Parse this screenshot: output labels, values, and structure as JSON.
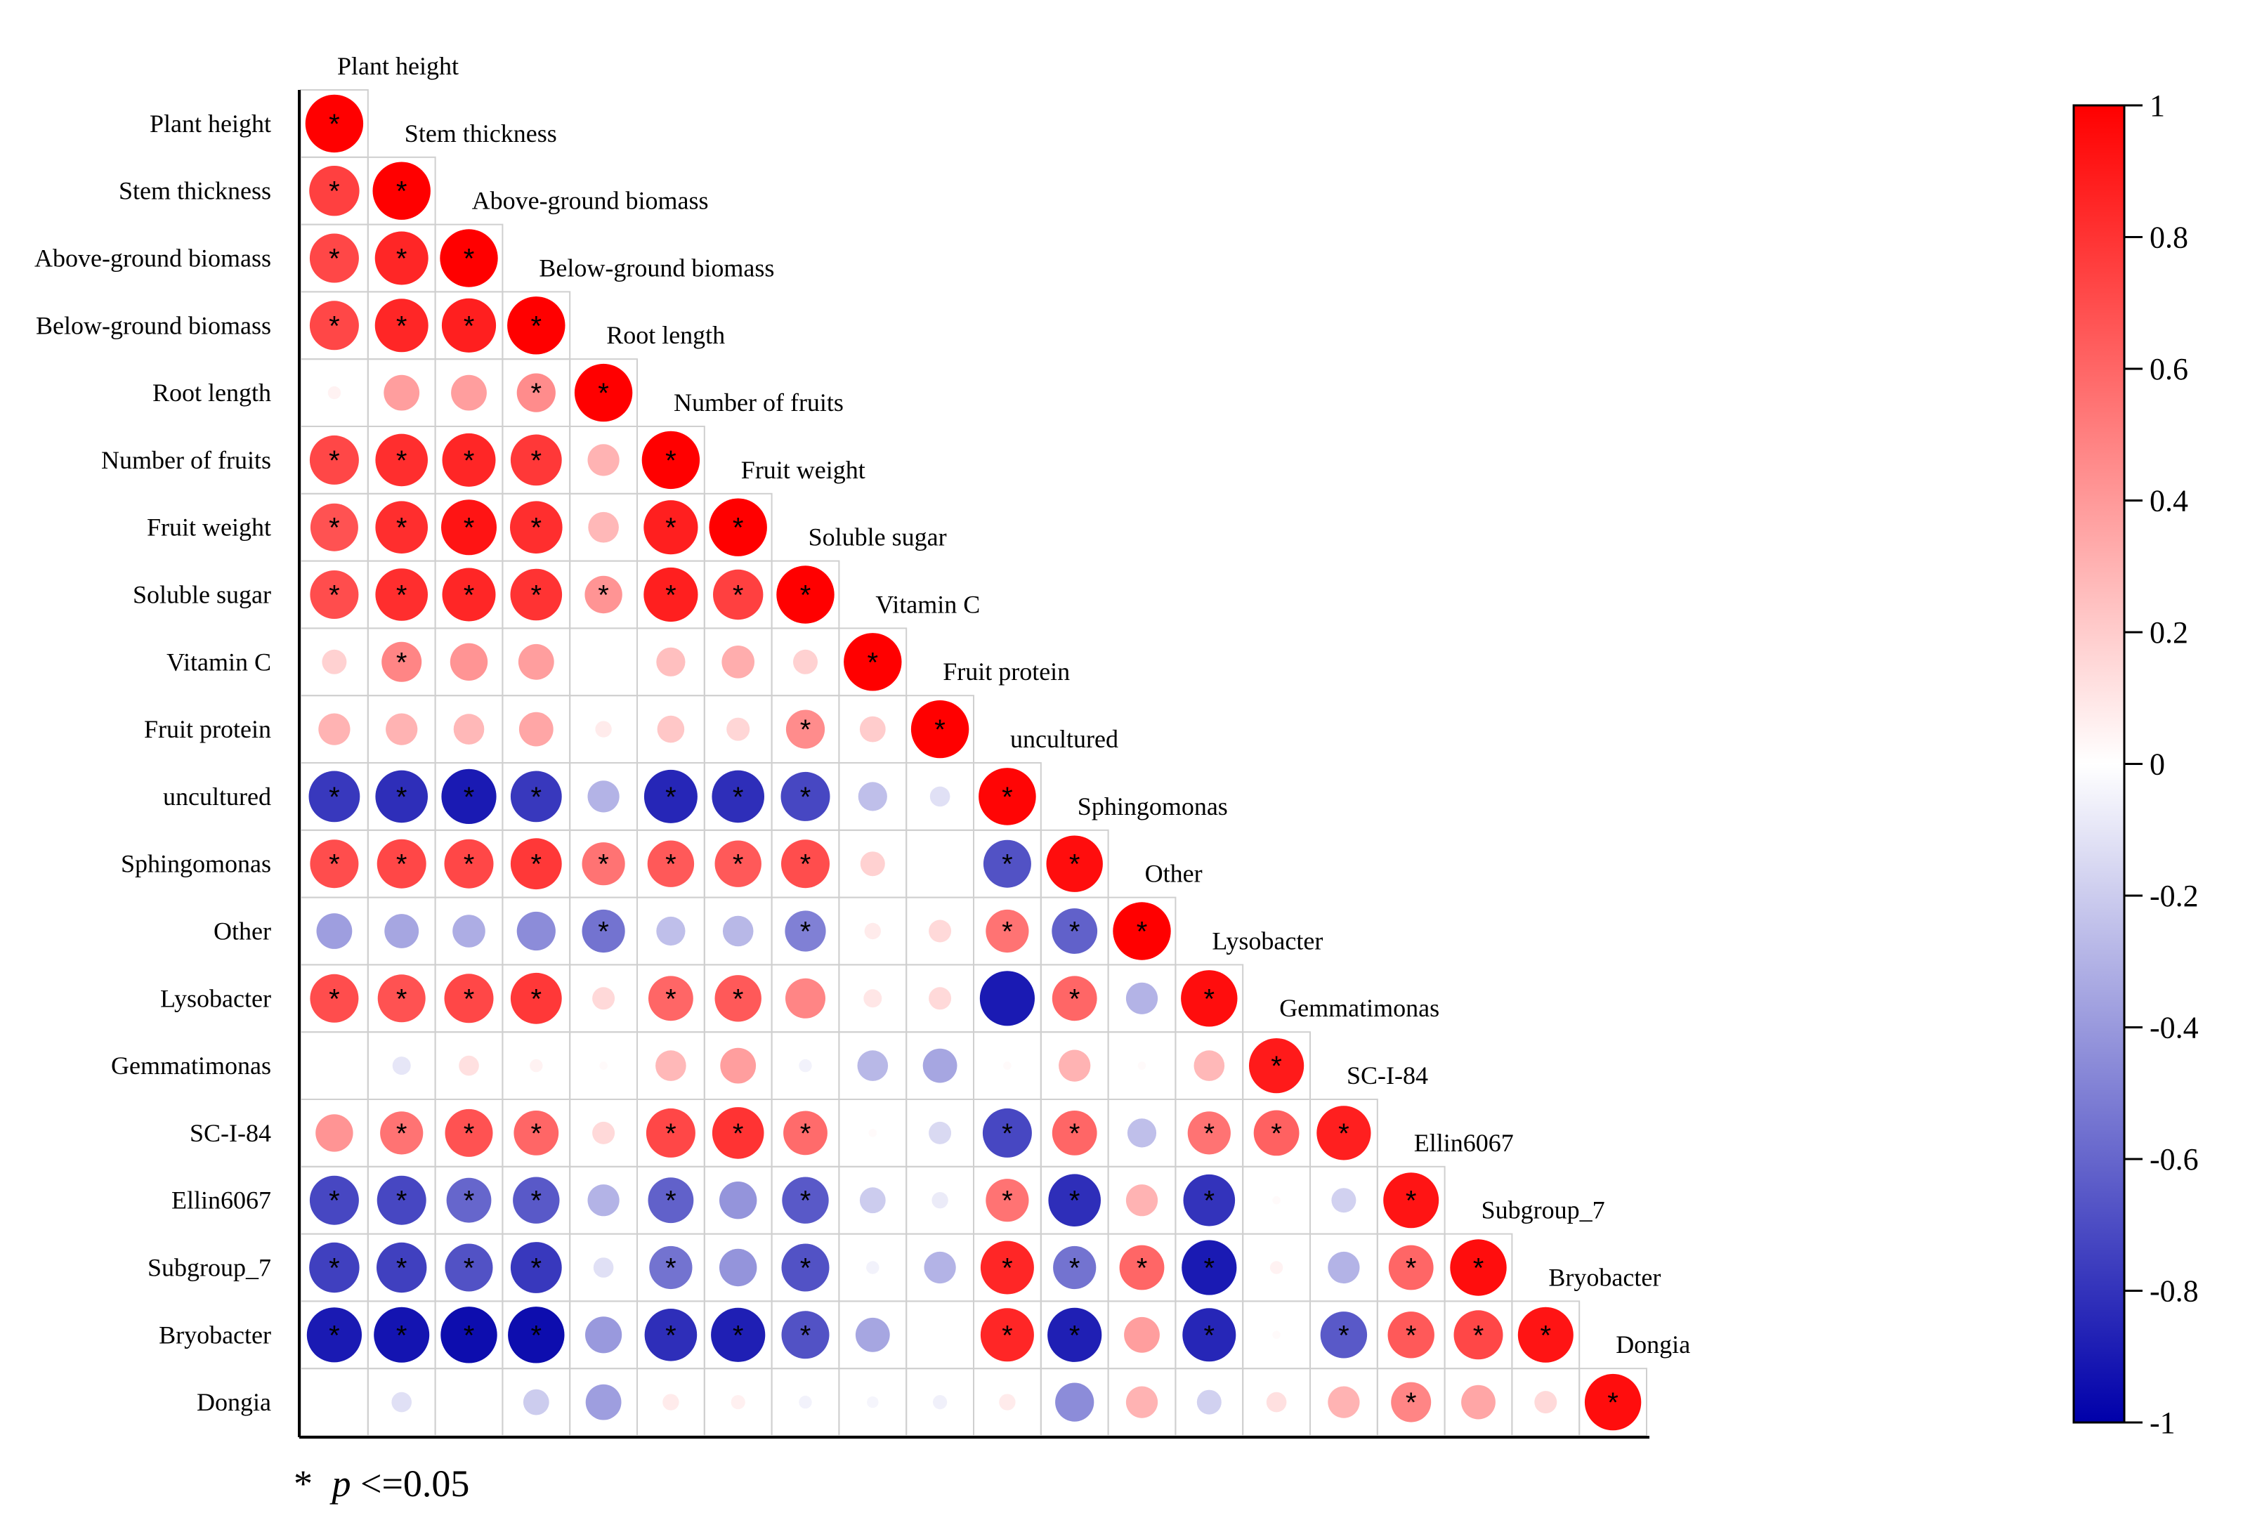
{
  "chart_data": {
    "type": "heatmap",
    "subtype": "lower-triangle correlation circle matrix",
    "variables": [
      "Plant height",
      "Stem thickness",
      "Above-ground biomass",
      "Below-ground biomass",
      "Root length",
      "Number of fruits",
      "Fruit weight",
      "Soluble sugar",
      "Vitamin C",
      "Fruit protein",
      "uncultured",
      "Sphingomonas",
      "Other",
      "Lysobacter",
      "Gemmatimonas",
      "SC-I-84",
      "Ellin6067",
      "Subgroup_7",
      "Bryobacter",
      "Dongia"
    ],
    "values": [
      [
        1
      ],
      [
        0.75,
        1
      ],
      [
        0.72,
        0.85,
        1
      ],
      [
        0.72,
        0.85,
        0.88,
        1
      ],
      [
        0.05,
        0.38,
        0.38,
        0.45,
        1
      ],
      [
        0.72,
        0.82,
        0.85,
        0.78,
        0.3,
        1
      ],
      [
        0.68,
        0.82,
        0.92,
        0.82,
        0.28,
        0.88,
        1
      ],
      [
        0.7,
        0.82,
        0.85,
        0.8,
        0.42,
        0.88,
        0.75,
        1
      ],
      [
        0.18,
        0.48,
        0.42,
        0.38,
        0.0,
        0.25,
        0.32,
        0.18,
        1
      ],
      [
        0.3,
        0.3,
        0.28,
        0.35,
        0.08,
        0.22,
        0.16,
        0.45,
        0.2,
        1
      ],
      [
        -0.78,
        -0.82,
        -0.9,
        -0.78,
        -0.3,
        -0.85,
        -0.82,
        -0.72,
        -0.25,
        -0.12,
        0.98
      ],
      [
        0.7,
        0.72,
        0.72,
        0.78,
        0.55,
        0.65,
        0.65,
        0.7,
        0.18,
        0.0,
        -0.68,
        0.95
      ],
      [
        -0.38,
        -0.35,
        -0.32,
        -0.45,
        -0.55,
        -0.25,
        -0.28,
        -0.5,
        0.08,
        0.15,
        0.55,
        -0.62,
        1
      ],
      [
        0.7,
        0.68,
        0.72,
        0.78,
        0.15,
        0.6,
        0.65,
        0.48,
        0.1,
        0.15,
        -0.9,
        0.6,
        -0.3,
        0.95
      ],
      [
        0.0,
        -0.1,
        0.12,
        0.05,
        0.02,
        0.28,
        0.38,
        -0.05,
        -0.28,
        -0.35,
        0.02,
        0.3,
        0.02,
        0.28,
        0.9
      ],
      [
        0.42,
        0.55,
        0.68,
        0.6,
        0.15,
        0.72,
        0.8,
        0.58,
        0.02,
        -0.15,
        -0.72,
        0.6,
        -0.25,
        0.55,
        0.62,
        0.88
      ],
      [
        -0.72,
        -0.72,
        -0.6,
        -0.65,
        -0.3,
        -0.62,
        -0.42,
        -0.65,
        -0.2,
        -0.08,
        0.55,
        -0.82,
        0.3,
        -0.8,
        0.02,
        -0.18,
        0.92
      ],
      [
        -0.75,
        -0.75,
        -0.68,
        -0.78,
        -0.12,
        -0.55,
        -0.42,
        -0.68,
        -0.05,
        -0.3,
        0.85,
        -0.55,
        0.6,
        -0.9,
        0.05,
        -0.3,
        0.6,
        0.95
      ],
      [
        -0.9,
        -0.92,
        -0.95,
        -0.95,
        -0.4,
        -0.82,
        -0.88,
        -0.68,
        -0.35,
        0.0,
        0.85,
        -0.88,
        0.38,
        -0.85,
        0.02,
        -0.65,
        0.65,
        0.72,
        0.92
      ],
      [
        0.0,
        -0.12,
        0.0,
        -0.2,
        -0.38,
        0.08,
        0.06,
        -0.05,
        -0.04,
        -0.06,
        0.08,
        -0.45,
        0.3,
        -0.18,
        0.12,
        0.3,
        0.48,
        0.35,
        0.15,
        0.95
      ]
    ],
    "significant": [
      [
        1
      ],
      [
        1,
        1
      ],
      [
        1,
        1,
        1
      ],
      [
        1,
        1,
        1,
        1
      ],
      [
        0,
        0,
        0,
        1,
        1
      ],
      [
        1,
        1,
        1,
        1,
        0,
        1
      ],
      [
        1,
        1,
        1,
        1,
        0,
        1,
        1
      ],
      [
        1,
        1,
        1,
        1,
        1,
        1,
        1,
        1
      ],
      [
        0,
        1,
        0,
        0,
        0,
        0,
        0,
        0,
        1
      ],
      [
        0,
        0,
        0,
        0,
        0,
        0,
        0,
        1,
        0,
        1
      ],
      [
        1,
        1,
        1,
        1,
        0,
        1,
        1,
        1,
        0,
        0,
        1
      ],
      [
        1,
        1,
        1,
        1,
        1,
        1,
        1,
        1,
        0,
        0,
        1,
        1
      ],
      [
        0,
        0,
        0,
        0,
        1,
        0,
        0,
        1,
        0,
        0,
        1,
        1,
        1
      ],
      [
        1,
        1,
        1,
        1,
        0,
        1,
        1,
        0,
        0,
        0,
        0,
        1,
        0,
        1
      ],
      [
        0,
        0,
        0,
        0,
        0,
        0,
        0,
        0,
        0,
        0,
        0,
        0,
        0,
        0,
        1
      ],
      [
        0,
        1,
        1,
        1,
        0,
        1,
        1,
        1,
        0,
        0,
        1,
        1,
        0,
        1,
        1,
        1
      ],
      [
        1,
        1,
        1,
        1,
        0,
        1,
        0,
        1,
        0,
        0,
        1,
        1,
        0,
        1,
        0,
        0,
        1
      ],
      [
        1,
        1,
        1,
        1,
        0,
        1,
        0,
        1,
        0,
        0,
        1,
        1,
        1,
        1,
        0,
        0,
        1,
        1
      ],
      [
        1,
        1,
        1,
        1,
        0,
        1,
        1,
        1,
        0,
        0,
        1,
        1,
        0,
        1,
        0,
        1,
        1,
        1,
        1
      ],
      [
        0,
        0,
        0,
        0,
        0,
        0,
        0,
        0,
        0,
        0,
        0,
        0,
        0,
        0,
        0,
        0,
        1,
        0,
        0,
        1
      ]
    ],
    "colorbar": {
      "min": -1,
      "max": 1,
      "ticks": [
        1,
        0.8,
        0.6,
        0.4,
        0.2,
        0,
        -0.2,
        -0.4,
        -0.6,
        -0.8,
        -1
      ],
      "tick_labels": [
        "1",
        "0.8",
        "0.6",
        "0.4",
        "0.2",
        "0",
        "-0.2",
        "-0.4",
        "-0.6",
        "-0.8",
        "-1"
      ],
      "colors": {
        "negative": "#0000AA",
        "zero": "#FFFFFF",
        "positive": "#FF0000"
      }
    },
    "significance_marker": "*",
    "footnote": {
      "star": "*",
      "p_symbol": "p",
      "relation": "<=0.05"
    }
  }
}
